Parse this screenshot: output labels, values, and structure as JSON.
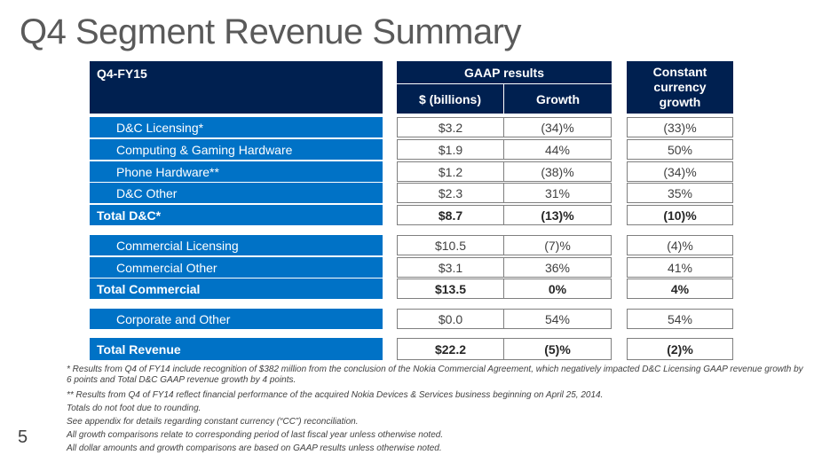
{
  "slide": {
    "title": "Q4 Segment Revenue Summary",
    "page_number": "5"
  },
  "table": {
    "period_label": "Q4-FY15",
    "gaap_header": "GAAP results",
    "dollar_header": "$ (billions)",
    "growth_header": "Growth",
    "cc_header": "Constant currency growth",
    "rows": [
      {
        "label": "D&C Licensing*",
        "dollars": "$3.2",
        "growth": "(34)%",
        "cc": "(33)%"
      },
      {
        "label": "Computing & Gaming Hardware",
        "dollars": "$1.9",
        "growth": "44%",
        "cc": "50%"
      },
      {
        "label": "Phone Hardware**",
        "dollars": "$1.2",
        "growth": "(38)%",
        "cc": "(34)%"
      },
      {
        "label": "D&C Other",
        "dollars": "$2.3",
        "growth": "31%",
        "cc": "35%"
      },
      {
        "label": "Total D&C*",
        "dollars": "$8.7",
        "growth": "(13)%",
        "cc": "(10)%"
      },
      {
        "label": "Commercial Licensing",
        "dollars": "$10.5",
        "growth": "(7)%",
        "cc": "(4)%"
      },
      {
        "label": "Commercial Other",
        "dollars": "$3.1",
        "growth": "36%",
        "cc": "41%"
      },
      {
        "label": "Total Commercial",
        "dollars": "$13.5",
        "growth": "0%",
        "cc": "4%"
      },
      {
        "label": "Corporate and Other",
        "dollars": "$0.0",
        "growth": "54%",
        "cc": "54%"
      },
      {
        "label": "Total Revenue",
        "dollars": "$22.2",
        "growth": "(5)%",
        "cc": "(2)%"
      }
    ]
  },
  "footnotes": [
    "* Results from Q4 of FY14 include recognition of $382 million from the conclusion of the Nokia Commercial Agreement, which negatively impacted D&C Licensing GAAP revenue growth by 6 points and Total D&C GAAP revenue growth by 4 points.",
    "** Results from Q4 of FY14 reflect financial performance of the acquired Nokia Devices & Services business beginning on April 25, 2014.",
    "Totals do not foot due to rounding.",
    "See appendix for details regarding constant currency (“CC”) reconciliation.",
    "All growth comparisons relate to corresponding period of last fiscal year unless otherwise noted.",
    "All dollar amounts and growth comparisons are based on GAAP results unless otherwise noted."
  ]
}
